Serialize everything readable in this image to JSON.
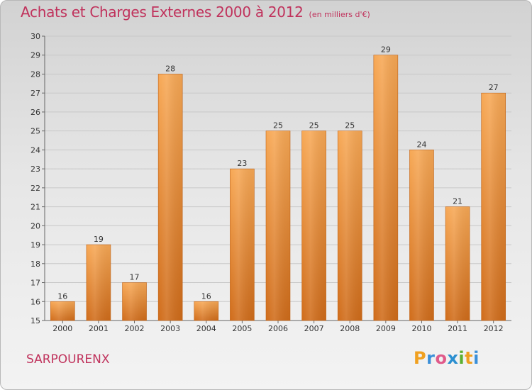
{
  "chart_data": {
    "type": "bar",
    "title": "Achats et Charges Externes 2000 à 2012",
    "subtitle": "(en milliers d'€)",
    "categories": [
      "2000",
      "2001",
      "2002",
      "2003",
      "2004",
      "2005",
      "2006",
      "2007",
      "2008",
      "2009",
      "2010",
      "2011",
      "2012"
    ],
    "values": [
      16,
      19,
      17,
      28,
      16,
      23,
      25,
      25,
      25,
      29,
      24,
      21,
      27
    ],
    "ylim": [
      15,
      30
    ],
    "yticks": [
      15,
      16,
      17,
      18,
      19,
      20,
      21,
      22,
      23,
      24,
      25,
      26,
      27,
      28,
      29,
      30
    ],
    "grid": true,
    "colors": {
      "bar_light": "#f7a855",
      "bar_dark": "#d06c1a",
      "title": "#c0325c"
    }
  },
  "footer": {
    "commune": "SARPOURENX",
    "logo_letters": [
      "P",
      "r",
      "o",
      "x",
      "i",
      "t",
      "i"
    ],
    "logo_colors": [
      "#f0a020",
      "#3a8fd8",
      "#e05a8a",
      "#2b8fd0",
      "#5cb030",
      "#f0a020",
      "#3a8fd8"
    ]
  }
}
